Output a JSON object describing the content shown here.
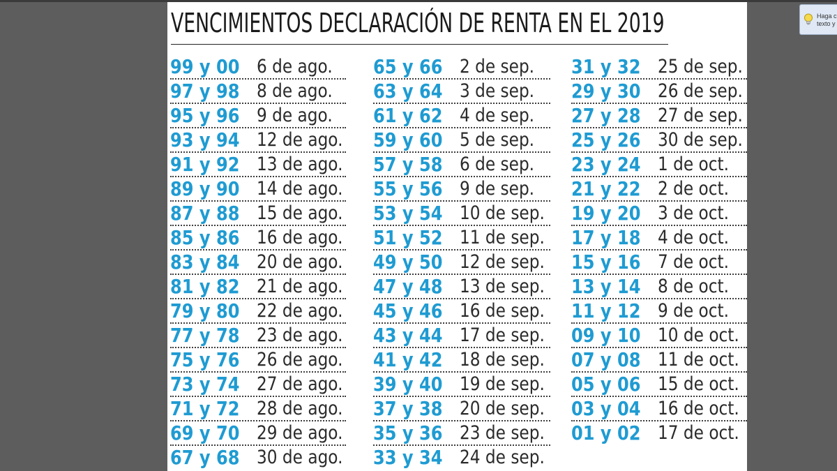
{
  "document": {
    "title": "VENCIMIENTOS DECLARACIÓN DE RENTA EN EL 2019",
    "columns": [
      [
        {
          "digits": "99 y 00",
          "date": "6 de ago."
        },
        {
          "digits": "97 y 98",
          "date": "8 de ago."
        },
        {
          "digits": "95 y 96",
          "date": "9 de ago."
        },
        {
          "digits": "93 y 94",
          "date": "12 de ago."
        },
        {
          "digits": "91 y 92",
          "date": "13 de ago."
        },
        {
          "digits": "89 y 90",
          "date": "14 de ago."
        },
        {
          "digits": "87 y 88",
          "date": "15 de ago."
        },
        {
          "digits": "85 y 86",
          "date": "16 de ago."
        },
        {
          "digits": "83 y 84",
          "date": "20 de ago."
        },
        {
          "digits": "81 y 82",
          "date": "21 de ago."
        },
        {
          "digits": "79 y 80",
          "date": "22 de ago."
        },
        {
          "digits": "77 y 78",
          "date": "23 de ago."
        },
        {
          "digits": "75 y 76",
          "date": "26 de ago."
        },
        {
          "digits": "73 y 74",
          "date": "27 de ago."
        },
        {
          "digits": "71 y 72",
          "date": "28 de ago."
        },
        {
          "digits": "69 y 70",
          "date": "29 de ago."
        },
        {
          "digits": "67 y 68",
          "date": "30 de ago."
        }
      ],
      [
        {
          "digits": "65 y 66",
          "date": "2 de sep."
        },
        {
          "digits": "63 y 64",
          "date": "3 de sep."
        },
        {
          "digits": "61 y 62",
          "date": "4 de sep."
        },
        {
          "digits": "59 y 60",
          "date": "5 de sep."
        },
        {
          "digits": "57 y 58",
          "date": "6 de sep."
        },
        {
          "digits": "55 y 56",
          "date": "9 de sep."
        },
        {
          "digits": "53 y 54",
          "date": "10 de sep."
        },
        {
          "digits": "51 y 52",
          "date": "11 de sep."
        },
        {
          "digits": "49 y 50",
          "date": "12 de sep."
        },
        {
          "digits": "47 y 48",
          "date": "13 de sep."
        },
        {
          "digits": "45 y 46",
          "date": "16 de sep."
        },
        {
          "digits": "43 y 44",
          "date": "17 de sep."
        },
        {
          "digits": "41 y 42",
          "date": "18 de sep."
        },
        {
          "digits": "39 y 40",
          "date": "19 de sep."
        },
        {
          "digits": "37 y 38",
          "date": "20 de sep."
        },
        {
          "digits": "35 y 36",
          "date": "23 de sep."
        },
        {
          "digits": "33 y 34",
          "date": "24 de sep."
        }
      ],
      [
        {
          "digits": "31 y 32",
          "date": "25 de sep."
        },
        {
          "digits": "29 y 30",
          "date": "26 de sep."
        },
        {
          "digits": "27 y 28",
          "date": "27 de sep."
        },
        {
          "digits": "25 y 26",
          "date": "30 de sep."
        },
        {
          "digits": "23 y 24",
          "date": "1 de oct."
        },
        {
          "digits": "21 y 22",
          "date": "2 de oct."
        },
        {
          "digits": "19 y 20",
          "date": "3 de oct."
        },
        {
          "digits": "17 y 18",
          "date": "4 de oct."
        },
        {
          "digits": "15 y 16",
          "date": "7 de oct."
        },
        {
          "digits": "13 y 14",
          "date": "8 de oct."
        },
        {
          "digits": "11 y 12",
          "date": "9 de oct."
        },
        {
          "digits": "09 y 10",
          "date": "10 de oct."
        },
        {
          "digits": "07 y 08",
          "date": "11 de oct."
        },
        {
          "digits": "05 y 06",
          "date": "15 de oct."
        },
        {
          "digits": "03 y 04",
          "date": "16 de oct."
        },
        {
          "digits": "01 y 02",
          "date": "17 de oct."
        }
      ]
    ]
  },
  "tooltip": {
    "line1": "Haga cl",
    "line2": "texto y t",
    "icon": "lightbulb-icon"
  },
  "colors": {
    "digits": "#1f9bd2",
    "date": "#2b2b2b",
    "background": "#5d5d5d",
    "page": "#ffffff"
  }
}
